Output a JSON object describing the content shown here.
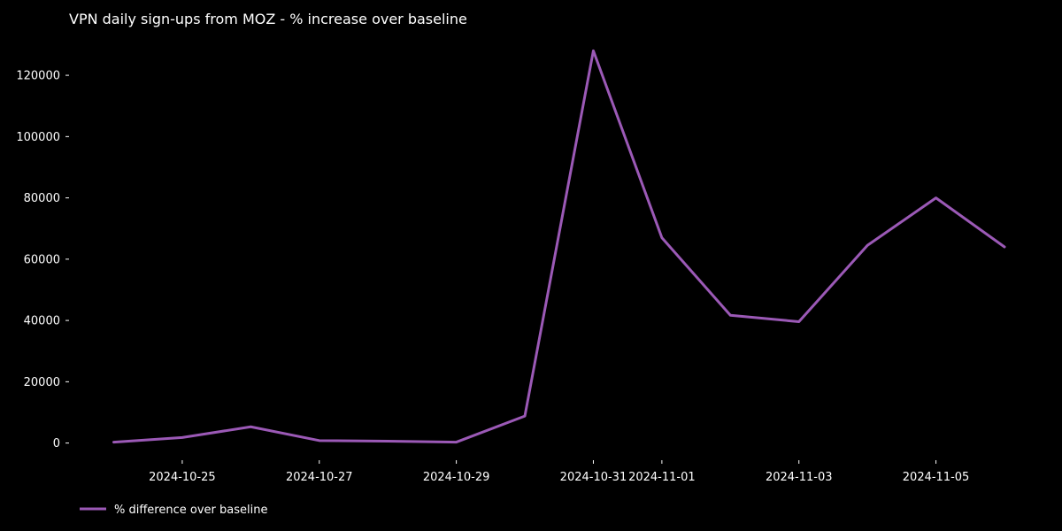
{
  "chart_data": {
    "type": "line",
    "title": "VPN daily sign-ups from MOZ - % increase over baseline",
    "xlabel": "",
    "ylabel": "",
    "x": [
      "2024-10-24",
      "2024-10-25",
      "2024-10-26",
      "2024-10-27",
      "2024-10-28",
      "2024-10-29",
      "2024-10-30",
      "2024-10-31",
      "2024-11-01",
      "2024-11-02",
      "2024-11-03",
      "2024-11-04",
      "2024-11-05",
      "2024-11-06"
    ],
    "series": [
      {
        "name": "% difference over baseline",
        "color": "#9b59b6",
        "values": [
          300,
          1800,
          5300,
          800,
          600,
          300,
          8800,
          128000,
          67000,
          41700,
          39600,
          64500,
          80000,
          64000
        ]
      }
    ],
    "xticks": [
      "2024-10-25",
      "2024-10-27",
      "2024-10-29",
      "2024-10-31",
      "2024-11-01",
      "2024-11-03",
      "2024-11-05"
    ],
    "yticks": [
      0,
      20000,
      40000,
      60000,
      80000,
      100000,
      120000
    ],
    "ytick_labels": [
      "0",
      "20000",
      "40000",
      "60000",
      "80000",
      "100000",
      "120000"
    ],
    "xlim": [
      "2024-10-24",
      "2024-11-06"
    ],
    "ylim": [
      -3000,
      131000
    ],
    "grid": false,
    "legend_position": "bottom-left",
    "background": "#000000",
    "text_color": "#ffffff"
  }
}
